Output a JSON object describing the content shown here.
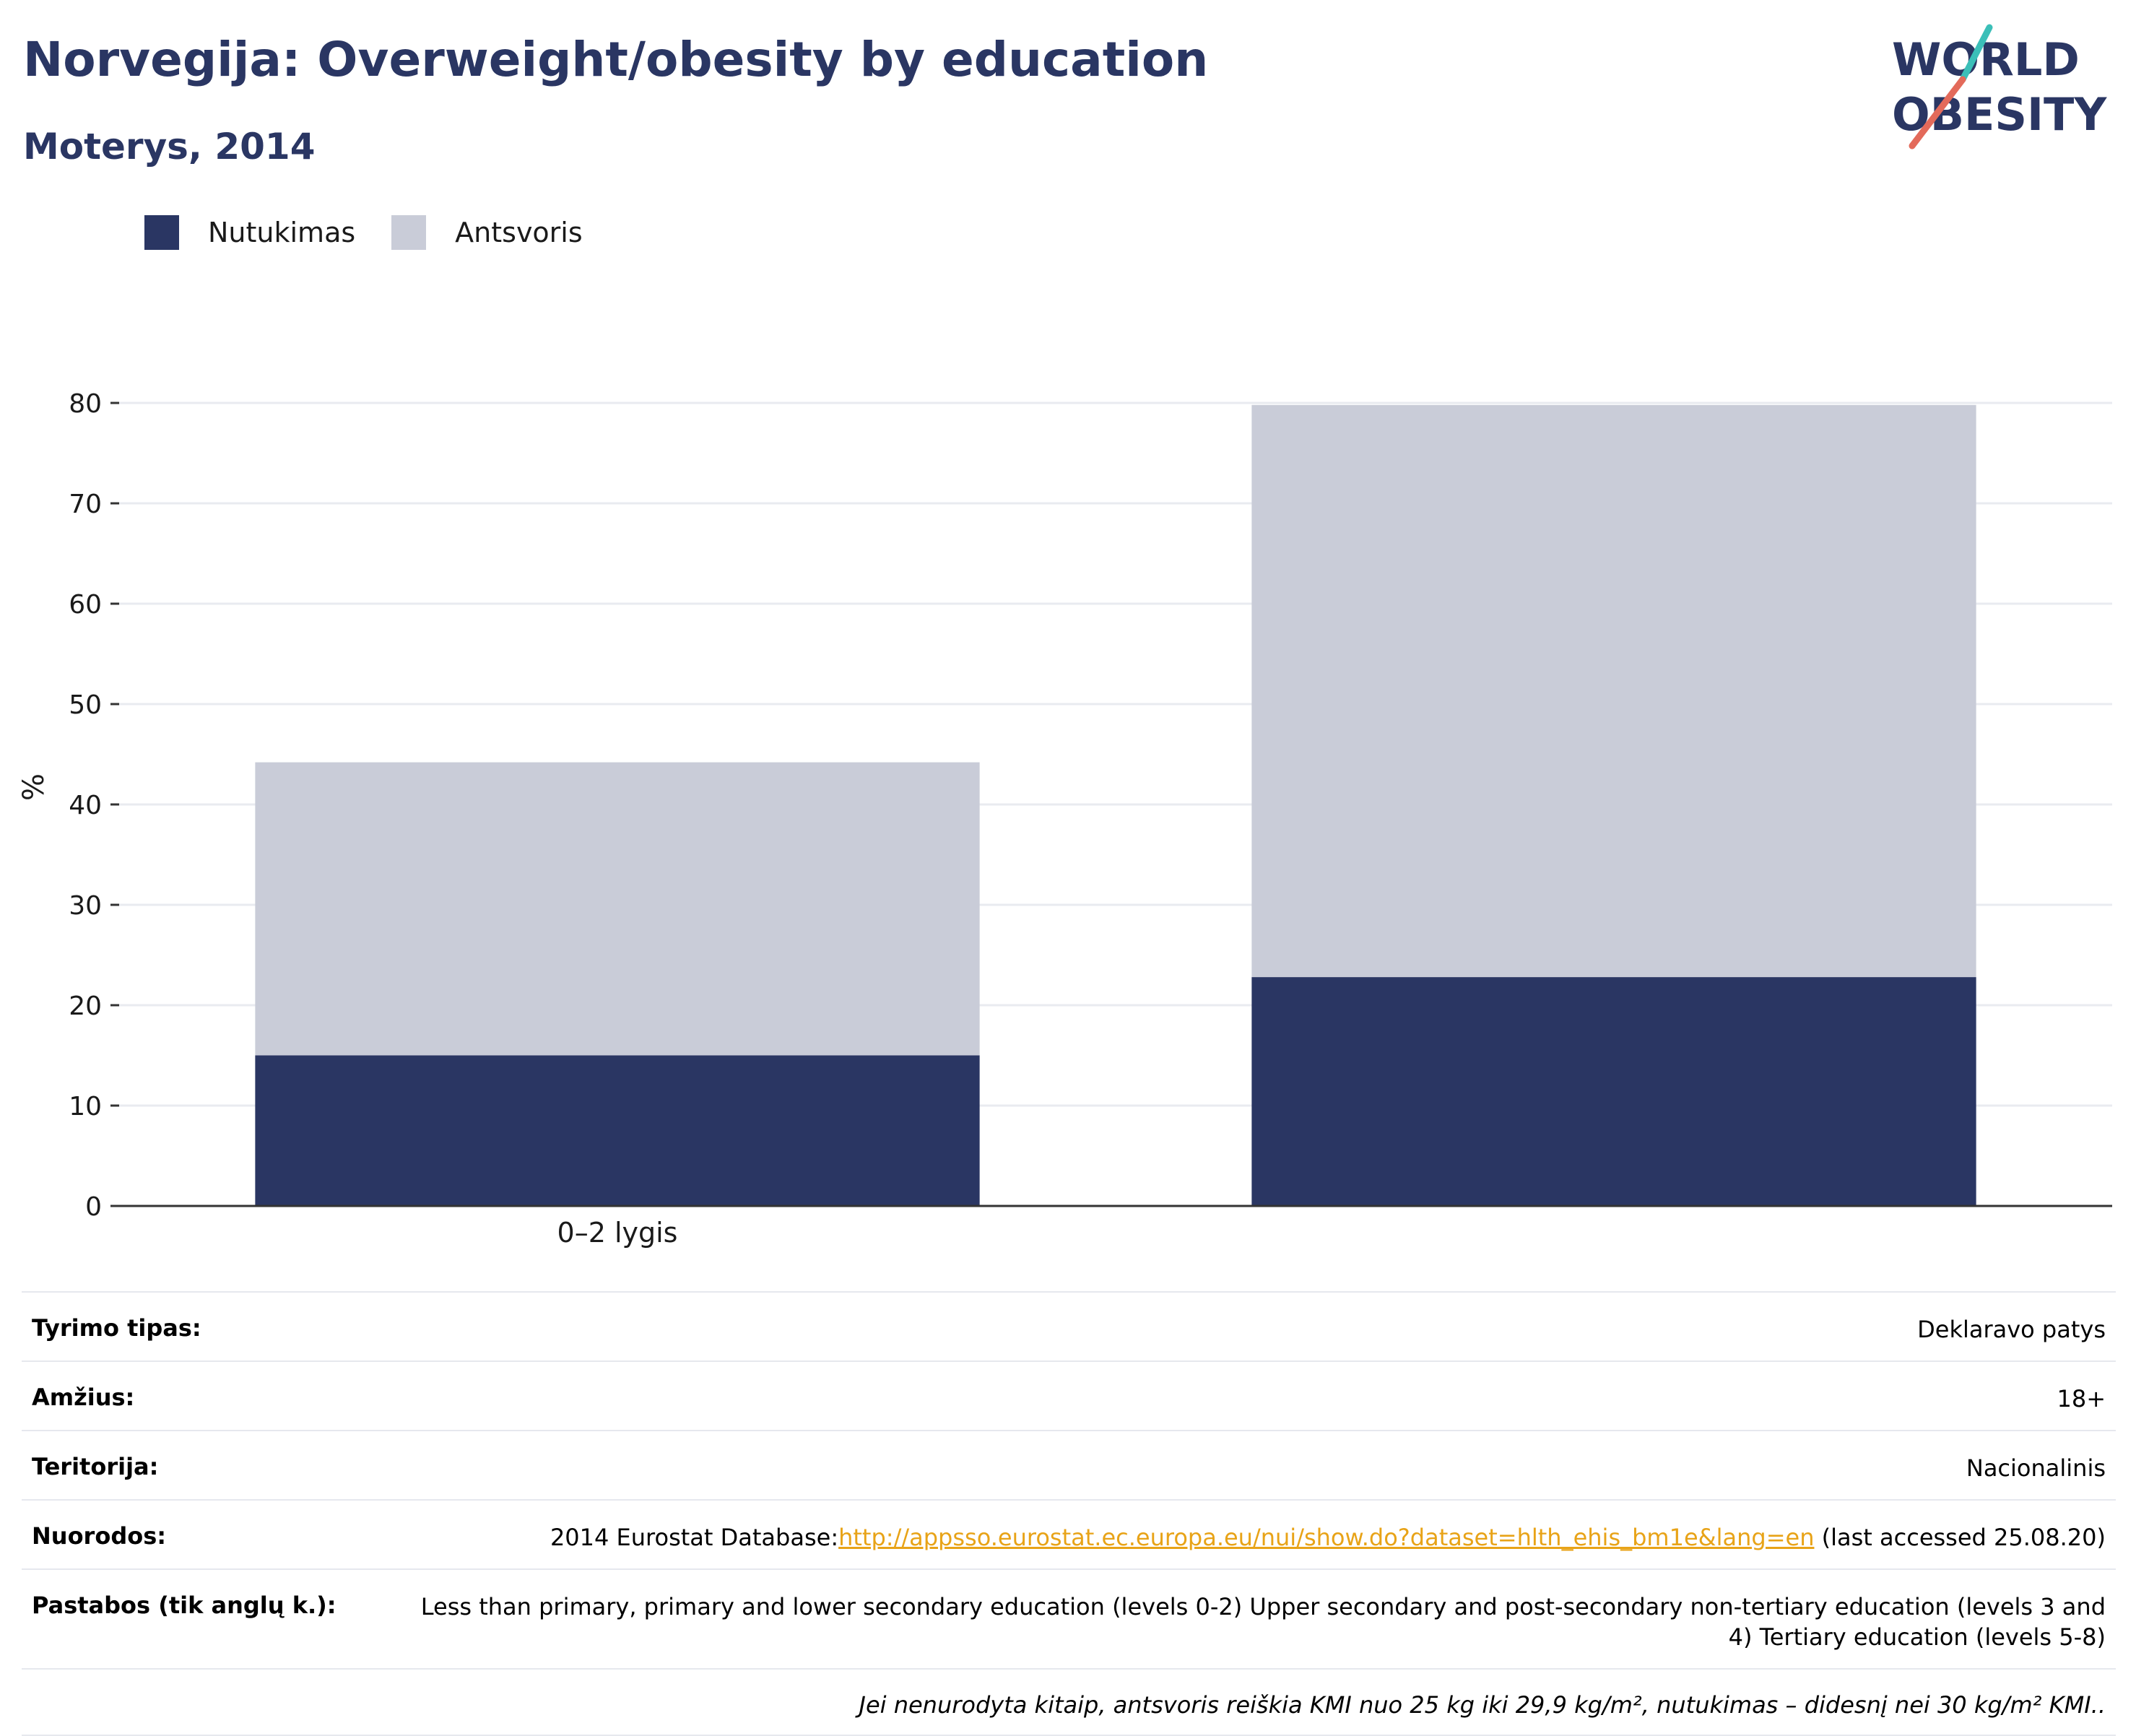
{
  "header": {
    "title": "Norvegija: Overweight/obesity by education",
    "subtitle": "Moterys, 2014"
  },
  "logo": {
    "line1": "WORLD",
    "line2": "OBESITY"
  },
  "chart_data": {
    "type": "bar",
    "stacked": true,
    "categories": [
      "0–2 lygis",
      ""
    ],
    "series": [
      {
        "name": "Nutukimas",
        "values": [
          15.0,
          22.8
        ],
        "color": "#2a3663"
      },
      {
        "name": "Antsvoris",
        "values": [
          29.2,
          57.0
        ],
        "color": "#c9ccd8"
      }
    ],
    "title": "",
    "xlabel": "",
    "ylabel": "%",
    "ylim": [
      0,
      80
    ],
    "yticks": [
      0,
      10,
      20,
      30,
      40,
      50,
      60,
      70,
      80
    ],
    "grid": true,
    "legend_position": "top-left"
  },
  "info": {
    "rows": [
      {
        "label": "Tyrimo tipas:",
        "value": "Deklaravo patys"
      },
      {
        "label": "Amžius:",
        "value": "18+"
      },
      {
        "label": "Teritorija:",
        "value": "Nacionalinis"
      }
    ],
    "references": {
      "label": "Nuorodos:",
      "prefix": "2014 Eurostat Database:",
      "link": "http://appsso.eurostat.ec.europa.eu/nui/show.do?dataset=hlth_ehis_bm1e&lang=en",
      "suffix": " (last accessed 25.08.20)"
    },
    "notes": {
      "label": "Pastabos (tik anglų k.):",
      "value": "Less than primary, primary and lower secondary education (levels 0-2) Upper secondary and post-secondary non-tertiary education (levels 3 and 4) Tertiary education (levels 5-8)"
    },
    "footnote": "Jei nenurodyta kitaip, antsvoris reiškia KMI nuo 25 kg iki 29,9 kg/m², nutukimas – didesnį nei 30 kg/m² KMI.."
  }
}
